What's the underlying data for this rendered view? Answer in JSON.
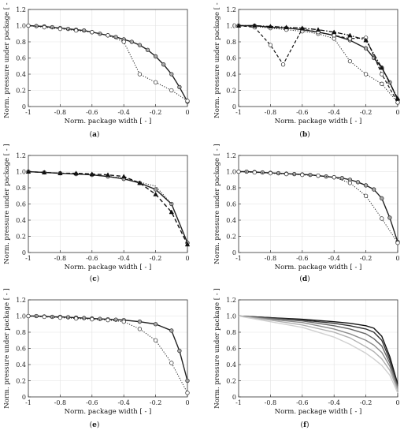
{
  "chart_data": [
    {
      "panel": "a",
      "caption_open": "(",
      "caption_letter": "a",
      "caption_close": ")",
      "type": "line",
      "xlabel": "Norm. package width [ - ]",
      "ylabel": "Norm. pressure under package [ - ]",
      "xlim": [
        -1,
        0
      ],
      "ylim": [
        0,
        1.2
      ],
      "xticks": [
        "-1",
        "-0.8",
        "-0.6",
        "-0.4",
        "-0.2",
        "0"
      ],
      "yticks": [
        "0",
        "0.2",
        "0.4",
        "0.6",
        "0.8",
        "1.0",
        "1.2"
      ],
      "series": [
        {
          "style": "solid-grey-circles",
          "x": [
            -1,
            -0.95,
            -0.9,
            -0.85,
            -0.8,
            -0.75,
            -0.7,
            -0.65,
            -0.6,
            -0.55,
            -0.5,
            -0.45,
            -0.4,
            -0.35,
            -0.3,
            -0.25,
            -0.2,
            -0.15,
            -0.1,
            -0.05,
            0
          ],
          "y": [
            1.0,
            0.995,
            0.99,
            0.98,
            0.97,
            0.96,
            0.95,
            0.94,
            0.92,
            0.9,
            0.88,
            0.86,
            0.83,
            0.8,
            0.76,
            0.7,
            0.62,
            0.52,
            0.4,
            0.24,
            0.06
          ]
        },
        {
          "style": "dotted-white-circles",
          "x": [
            -1,
            -0.9,
            -0.8,
            -0.7,
            -0.6,
            -0.5,
            -0.4,
            -0.3,
            -0.2,
            -0.1,
            0
          ],
          "y": [
            1.0,
            0.98,
            0.96,
            0.94,
            0.92,
            0.88,
            0.8,
            0.4,
            0.3,
            0.2,
            0.07
          ]
        }
      ]
    },
    {
      "panel": "b",
      "caption_open": "(",
      "caption_letter": "b",
      "caption_close": ")",
      "type": "line",
      "xlabel": "Norm. package width [ - ]",
      "ylabel": "Norm. pressure under package [ - ]",
      "xlim": [
        -1,
        0
      ],
      "ylim": [
        0,
        1.2
      ],
      "xticks": [
        "-1",
        "-0.8",
        "-0.6",
        "-0.4",
        "-0.2",
        "0"
      ],
      "yticks": [
        "0",
        "0.2",
        "0.4",
        "0.6",
        "0.8",
        "1.0",
        "1.2"
      ],
      "series": [
        {
          "style": "solid-grey-circles",
          "x": [
            -1,
            -0.9,
            -0.8,
            -0.7,
            -0.6,
            -0.5,
            -0.4,
            -0.3,
            -0.2,
            -0.15,
            -0.1,
            -0.05,
            0
          ],
          "y": [
            1.0,
            1.0,
            0.98,
            0.97,
            0.95,
            0.92,
            0.88,
            0.82,
            0.72,
            0.6,
            0.48,
            0.3,
            0.08
          ]
        },
        {
          "style": "dotted-white-circles",
          "x": [
            -1,
            -0.9,
            -0.8,
            -0.7,
            -0.6,
            -0.5,
            -0.4,
            -0.3,
            -0.2,
            -0.1,
            0
          ],
          "y": [
            1.0,
            0.99,
            0.97,
            0.95,
            0.93,
            0.9,
            0.84,
            0.56,
            0.4,
            0.28,
            0.05
          ]
        },
        {
          "style": "dashed-white-circles",
          "x": [
            -1,
            -0.9,
            -0.8,
            -0.72,
            -0.6,
            -0.5,
            -0.4,
            -0.3,
            -0.2,
            -0.1,
            0
          ],
          "y": [
            1.0,
            0.98,
            0.76,
            0.52,
            0.96,
            0.92,
            0.88,
            0.84,
            0.85,
            0.4,
            0.05
          ]
        },
        {
          "style": "dashdot-black-triangles",
          "x": [
            -1,
            -0.9,
            -0.8,
            -0.7,
            -0.6,
            -0.5,
            -0.4,
            -0.3,
            -0.2,
            -0.1,
            0
          ],
          "y": [
            1.0,
            1.0,
            0.99,
            0.98,
            0.97,
            0.95,
            0.92,
            0.88,
            0.82,
            0.48,
            0.1
          ]
        }
      ]
    },
    {
      "panel": "c",
      "caption_open": "(",
      "caption_letter": "c",
      "caption_close": ")",
      "type": "line",
      "xlabel": "Norm. package width [ - ]",
      "ylabel": "Norm. pressure under package [ - ]",
      "xlim": [
        -1,
        0
      ],
      "ylim": [
        0,
        1.2
      ],
      "xticks": [
        "-1",
        "-0.8",
        "-0.6",
        "-0.4",
        "-0.2",
        "0"
      ],
      "yticks": [
        "0",
        "0.2",
        "0.4",
        "0.6",
        "0.8",
        "1.0",
        "1.2"
      ],
      "series": [
        {
          "style": "solid-grey-circles",
          "x": [
            -1,
            -0.9,
            -0.8,
            -0.7,
            -0.6,
            -0.5,
            -0.4,
            -0.3,
            -0.2,
            -0.1,
            0
          ],
          "y": [
            1.0,
            0.99,
            0.98,
            0.97,
            0.96,
            0.94,
            0.91,
            0.86,
            0.78,
            0.6,
            0.12
          ]
        },
        {
          "style": "dashed-black-triangles",
          "x": [
            -1,
            -0.9,
            -0.8,
            -0.7,
            -0.6,
            -0.5,
            -0.4,
            -0.3,
            -0.2,
            -0.1,
            0
          ],
          "y": [
            1.0,
            0.99,
            0.98,
            0.98,
            0.97,
            0.96,
            0.94,
            0.86,
            0.72,
            0.5,
            0.1
          ]
        },
        {
          "style": "dotted",
          "x": [
            -1,
            -0.8,
            -0.6,
            -0.4,
            -0.2,
            -0.1,
            0
          ],
          "y": [
            1.0,
            0.98,
            0.96,
            0.92,
            0.82,
            0.6,
            0.12
          ]
        }
      ]
    },
    {
      "panel": "d",
      "caption_open": "(",
      "caption_letter": "d",
      "caption_close": ")",
      "type": "line",
      "xlabel": "Norm. package width [ - ]",
      "ylabel": "Norm. pressure under package [ - ]",
      "xlim": [
        -1,
        0
      ],
      "ylim": [
        0,
        1.2
      ],
      "xticks": [
        "-1",
        "-0.8",
        "-0.6",
        "-0.4",
        "-0.2",
        "0"
      ],
      "yticks": [
        "0",
        "0.2",
        "0.4",
        "0.6",
        "0.8",
        "1.0",
        "1.2"
      ],
      "series": [
        {
          "style": "solid-grey-circles",
          "x": [
            -1,
            -0.95,
            -0.9,
            -0.85,
            -0.8,
            -0.75,
            -0.7,
            -0.65,
            -0.6,
            -0.55,
            -0.5,
            -0.45,
            -0.4,
            -0.35,
            -0.3,
            -0.25,
            -0.2,
            -0.15,
            -0.1,
            -0.05,
            0
          ],
          "y": [
            1.0,
            1.0,
            0.995,
            0.99,
            0.985,
            0.98,
            0.975,
            0.97,
            0.965,
            0.96,
            0.95,
            0.94,
            0.93,
            0.92,
            0.9,
            0.87,
            0.83,
            0.78,
            0.67,
            0.43,
            0.13
          ]
        },
        {
          "style": "dotted-white-circles",
          "x": [
            -1,
            -0.9,
            -0.8,
            -0.7,
            -0.6,
            -0.5,
            -0.4,
            -0.3,
            -0.2,
            -0.1,
            0
          ],
          "y": [
            1.0,
            0.99,
            0.98,
            0.97,
            0.96,
            0.95,
            0.93,
            0.86,
            0.7,
            0.42,
            0.12
          ]
        }
      ]
    },
    {
      "panel": "e",
      "caption_open": "(",
      "caption_letter": "e",
      "caption_close": ")",
      "type": "line",
      "xlabel": "Norm. package width [ - ]",
      "ylabel": "Norm. pressure under package [ - ]",
      "xlim": [
        -1,
        0
      ],
      "ylim": [
        0,
        1.2
      ],
      "xticks": [
        "-1",
        "-0.8",
        "-0.6",
        "-0.4",
        "-0.2",
        "0"
      ],
      "yticks": [
        "0",
        "0.2",
        "0.4",
        "0.6",
        "0.8",
        "1.0",
        "1.2"
      ],
      "series": [
        {
          "style": "solid-grey-circles",
          "x": [
            -1,
            -0.95,
            -0.9,
            -0.85,
            -0.8,
            -0.75,
            -0.7,
            -0.65,
            -0.6,
            -0.55,
            -0.5,
            -0.45,
            -0.4,
            -0.3,
            -0.2,
            -0.1,
            -0.05,
            0
          ],
          "y": [
            1.0,
            1.0,
            0.995,
            0.99,
            0.99,
            0.985,
            0.98,
            0.975,
            0.97,
            0.965,
            0.96,
            0.955,
            0.95,
            0.93,
            0.9,
            0.82,
            0.57,
            0.2
          ]
        },
        {
          "style": "dotted-white-circles",
          "x": [
            -1,
            -0.9,
            -0.8,
            -0.7,
            -0.6,
            -0.5,
            -0.4,
            -0.3,
            -0.2,
            -0.1,
            0
          ],
          "y": [
            1.0,
            0.99,
            0.98,
            0.97,
            0.96,
            0.95,
            0.93,
            0.84,
            0.7,
            0.42,
            0.05
          ]
        }
      ]
    },
    {
      "panel": "f",
      "caption_open": "(",
      "caption_letter": "f",
      "caption_close": ")",
      "type": "line",
      "xlabel": "Norm. package width [ - ]",
      "ylabel": "Norm. pressure under package [ - ]",
      "xlim": [
        -1,
        0
      ],
      "ylim": [
        0,
        1.2
      ],
      "xticks": [
        "-1",
        "-0.8",
        "-0.6",
        "-0.4",
        "-0.2",
        "0"
      ],
      "yticks": [
        "0",
        "0.2",
        "0.4",
        "0.6",
        "0.8",
        "1.0",
        "1.2"
      ],
      "series": [
        {
          "style": "solid",
          "color": "#111111",
          "x": [
            -1,
            -0.8,
            -0.6,
            -0.4,
            -0.3,
            -0.2,
            -0.15,
            -0.1,
            -0.05,
            0
          ],
          "y": [
            1.0,
            0.98,
            0.96,
            0.93,
            0.91,
            0.88,
            0.85,
            0.75,
            0.5,
            0.16
          ]
        },
        {
          "style": "solid",
          "color": "#333333",
          "x": [
            -1,
            -0.8,
            -0.6,
            -0.4,
            -0.3,
            -0.2,
            -0.15,
            -0.1,
            -0.05,
            0
          ],
          "y": [
            1.0,
            0.98,
            0.95,
            0.91,
            0.88,
            0.84,
            0.8,
            0.7,
            0.46,
            0.14
          ]
        },
        {
          "style": "solid",
          "color": "#666666",
          "x": [
            -1,
            -0.8,
            -0.6,
            -0.4,
            -0.3,
            -0.2,
            -0.15,
            -0.1,
            -0.05,
            0
          ],
          "y": [
            1.0,
            0.97,
            0.94,
            0.88,
            0.84,
            0.78,
            0.72,
            0.63,
            0.42,
            0.12
          ]
        },
        {
          "style": "solid",
          "color": "#8c8c8c",
          "x": [
            -1,
            -0.8,
            -0.6,
            -0.4,
            -0.3,
            -0.2,
            -0.15,
            -0.1,
            -0.05,
            0
          ],
          "y": [
            1.0,
            0.96,
            0.92,
            0.84,
            0.78,
            0.7,
            0.64,
            0.55,
            0.38,
            0.1
          ]
        },
        {
          "style": "solid",
          "color": "#b0b0b0",
          "x": [
            -1,
            -0.8,
            -0.6,
            -0.4,
            -0.3,
            -0.2,
            -0.15,
            -0.1,
            -0.05,
            0
          ],
          "y": [
            1.0,
            0.95,
            0.89,
            0.8,
            0.73,
            0.62,
            0.56,
            0.47,
            0.33,
            0.08
          ]
        },
        {
          "style": "solid",
          "color": "#d0d0d0",
          "x": [
            -1,
            -0.8,
            -0.6,
            -0.4,
            -0.3,
            -0.2,
            -0.15,
            -0.1,
            -0.05,
            0
          ],
          "y": [
            1.0,
            0.93,
            0.86,
            0.74,
            0.65,
            0.54,
            0.47,
            0.39,
            0.27,
            0.05
          ]
        }
      ]
    }
  ]
}
